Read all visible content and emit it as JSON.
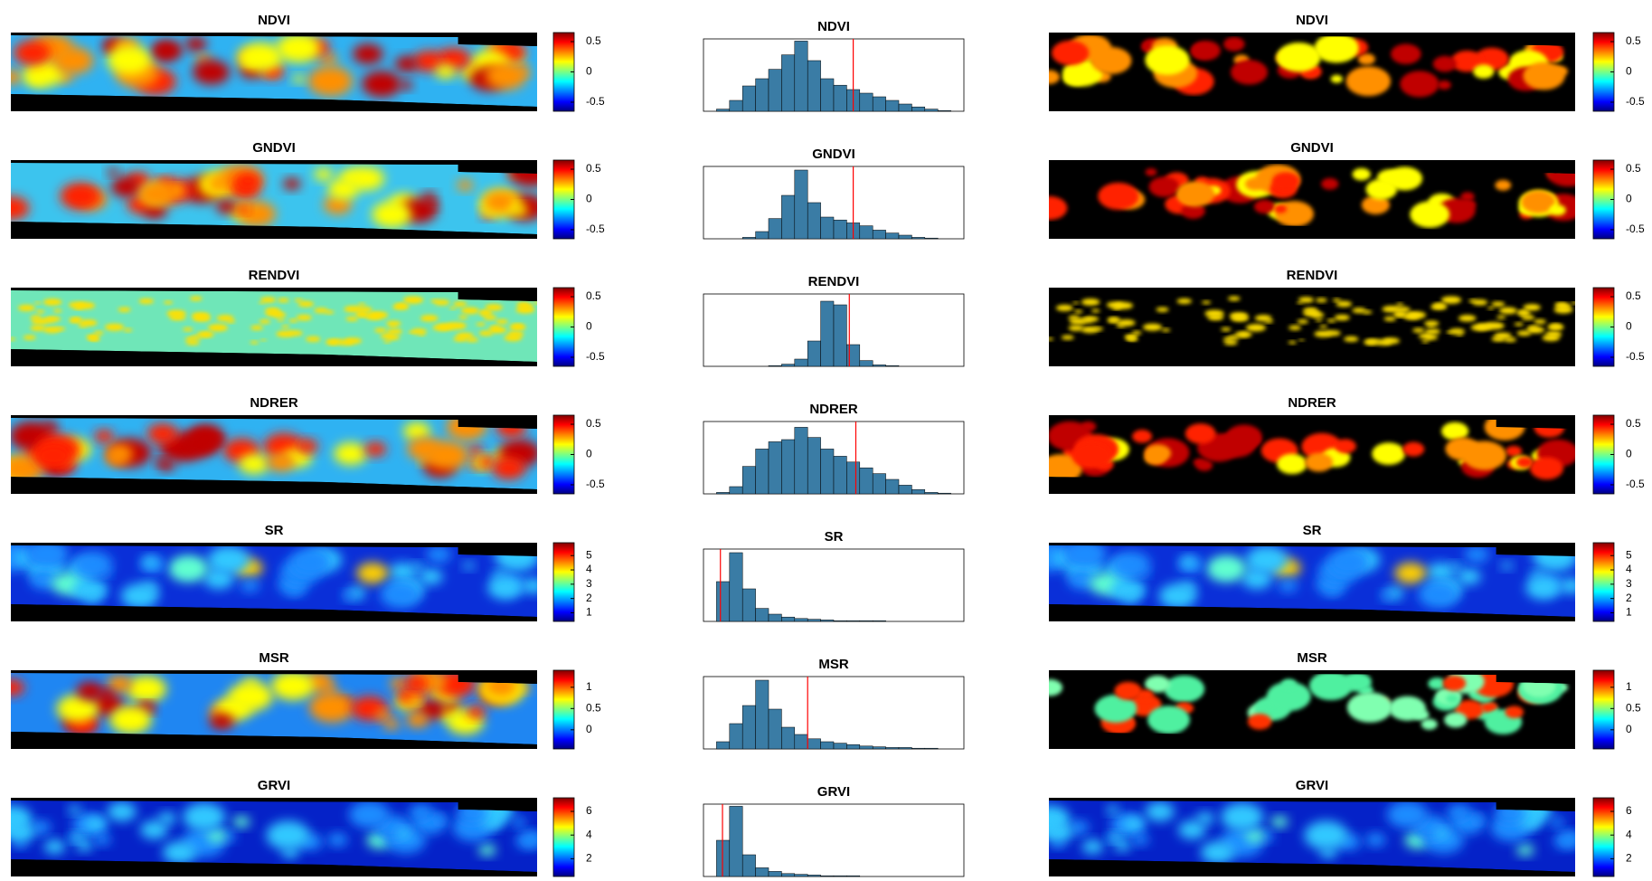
{
  "chart_data": [
    {
      "type": "heatmap",
      "title": "NDVI",
      "clim": [
        -0.65,
        0.65
      ],
      "cticks": [
        0.5,
        0,
        -0.5
      ],
      "mask": false
    },
    {
      "type": "histogram",
      "title": "NDVI",
      "xlim": [
        -1,
        1
      ],
      "ylim": [
        0,
        100
      ],
      "bins": [
        -0.9,
        -0.8,
        -0.7,
        -0.6,
        -0.5,
        -0.4,
        -0.3,
        -0.2,
        -0.1,
        0,
        0.1,
        0.2,
        0.3,
        0.4,
        0.5,
        0.6,
        0.7,
        0.8,
        0.9
      ],
      "counts": [
        3,
        15,
        35,
        45,
        58,
        78,
        97,
        70,
        45,
        36,
        30,
        25,
        20,
        15,
        10,
        6,
        3,
        1
      ],
      "threshold": 0.15,
      "color": "#3a7ca5",
      "line_color": "#ff0000"
    },
    {
      "type": "heatmap",
      "title": "NDVI",
      "clim": [
        -0.65,
        0.65
      ],
      "cticks": [
        0.5,
        0,
        -0.5
      ],
      "mask": true
    },
    {
      "type": "heatmap",
      "title": "GNDVI",
      "clim": [
        -0.65,
        0.65
      ],
      "cticks": [
        0.5,
        0,
        -0.5
      ],
      "mask": false
    },
    {
      "type": "histogram",
      "title": "GNDVI",
      "xlim": [
        -1,
        1
      ],
      "ylim": [
        0,
        100
      ],
      "bins": [
        -0.9,
        -0.8,
        -0.7,
        -0.6,
        -0.5,
        -0.4,
        -0.3,
        -0.2,
        -0.1,
        0,
        0.1,
        0.2,
        0.3,
        0.4,
        0.5,
        0.6,
        0.7,
        0.8,
        0.9
      ],
      "counts": [
        0,
        0,
        2,
        10,
        28,
        60,
        95,
        50,
        30,
        26,
        22,
        18,
        12,
        8,
        5,
        2,
        1,
        0
      ],
      "threshold": 0.15,
      "color": "#3a7ca5",
      "line_color": "#ff0000"
    },
    {
      "type": "heatmap",
      "title": "GNDVI",
      "clim": [
        -0.65,
        0.65
      ],
      "cticks": [
        0.5,
        0,
        -0.5
      ],
      "mask": true
    },
    {
      "type": "heatmap",
      "title": "RENDVI",
      "clim": [
        -0.65,
        0.65
      ],
      "cticks": [
        0.5,
        0,
        -0.5
      ],
      "mask": false
    },
    {
      "type": "histogram",
      "title": "RENDVI",
      "xlim": [
        -1,
        1
      ],
      "ylim": [
        0,
        100
      ],
      "bins": [
        -0.9,
        -0.8,
        -0.7,
        -0.6,
        -0.5,
        -0.4,
        -0.3,
        -0.2,
        -0.1,
        0,
        0.1,
        0.2,
        0.3,
        0.4,
        0.5,
        0.6,
        0.7,
        0.8,
        0.9
      ],
      "counts": [
        0,
        0,
        0,
        0,
        1,
        3,
        10,
        35,
        90,
        85,
        30,
        8,
        2,
        1,
        0,
        0,
        0,
        0
      ],
      "threshold": 0.12,
      "color": "#3a7ca5",
      "line_color": "#ff0000"
    },
    {
      "type": "heatmap",
      "title": "RENDVI",
      "clim": [
        -0.65,
        0.65
      ],
      "cticks": [
        0.5,
        0,
        -0.5
      ],
      "mask": true
    },
    {
      "type": "heatmap",
      "title": "NDRER",
      "clim": [
        -0.65,
        0.65
      ],
      "cticks": [
        0.5,
        0,
        -0.5
      ],
      "mask": false
    },
    {
      "type": "histogram",
      "title": "NDRER",
      "xlim": [
        -1,
        1
      ],
      "ylim": [
        0,
        100
      ],
      "bins": [
        -0.9,
        -0.8,
        -0.7,
        -0.6,
        -0.5,
        -0.4,
        -0.3,
        -0.2,
        -0.1,
        0,
        0.1,
        0.2,
        0.3,
        0.4,
        0.5,
        0.6,
        0.7,
        0.8,
        0.9
      ],
      "counts": [
        2,
        10,
        38,
        62,
        72,
        75,
        92,
        78,
        62,
        52,
        44,
        36,
        28,
        20,
        12,
        6,
        2,
        1
      ],
      "threshold": 0.17,
      "color": "#3a7ca5",
      "line_color": "#ff0000"
    },
    {
      "type": "heatmap",
      "title": "NDRER",
      "clim": [
        -0.65,
        0.65
      ],
      "cticks": [
        0.5,
        0,
        -0.5
      ],
      "mask": true
    },
    {
      "type": "heatmap",
      "title": "SR",
      "clim": [
        0.4,
        5.9
      ],
      "cticks": [
        5,
        4,
        3,
        2,
        1
      ],
      "mask": false
    },
    {
      "type": "histogram",
      "title": "SR",
      "xlim": [
        0,
        10
      ],
      "ylim": [
        0,
        100
      ],
      "bins": [
        0,
        0.5,
        1,
        1.5,
        2,
        2.5,
        3,
        3.5,
        4,
        4.5,
        5,
        5.5,
        6,
        6.5,
        7,
        7.5,
        8,
        8.5,
        9,
        9.5,
        10
      ],
      "counts": [
        0,
        55,
        95,
        45,
        18,
        10,
        6,
        4,
        3,
        2,
        1,
        1,
        1,
        1,
        0,
        0,
        0,
        0,
        0,
        0
      ],
      "threshold": 0.65,
      "color": "#3a7ca5",
      "line_color": "#ff0000"
    },
    {
      "type": "heatmap",
      "title": "SR",
      "clim": [
        0.4,
        5.9
      ],
      "cticks": [
        5,
        4,
        3,
        2,
        1
      ],
      "mask": false
    },
    {
      "type": "heatmap",
      "title": "MSR",
      "clim": [
        -0.45,
        1.4
      ],
      "cticks": [
        1,
        0.5,
        0
      ],
      "mask": false
    },
    {
      "type": "histogram",
      "title": "MSR",
      "xlim": [
        -0.5,
        2
      ],
      "ylim": [
        0,
        100
      ],
      "bins": [
        -0.5,
        -0.375,
        -0.25,
        -0.125,
        0,
        0.125,
        0.25,
        0.375,
        0.5,
        0.625,
        0.75,
        0.875,
        1,
        1.125,
        1.25,
        1.375,
        1.5,
        1.625,
        1.75,
        1.875,
        2
      ],
      "counts": [
        0,
        10,
        35,
        60,
        95,
        55,
        30,
        20,
        14,
        10,
        8,
        6,
        4,
        3,
        2,
        2,
        1,
        1,
        0,
        0
      ],
      "threshold": 0.5,
      "color": "#3a7ca5",
      "line_color": "#ff0000"
    },
    {
      "type": "heatmap",
      "title": "MSR",
      "clim": [
        -0.45,
        1.4
      ],
      "cticks": [
        1,
        0.5,
        0
      ],
      "mask": true
    },
    {
      "type": "heatmap",
      "title": "GRVI",
      "clim": [
        0.5,
        7.15
      ],
      "cticks": [
        6,
        4,
        2
      ],
      "mask": false
    },
    {
      "type": "histogram",
      "title": "GRVI",
      "xlim": [
        0,
        10
      ],
      "ylim": [
        0,
        100
      ],
      "bins": [
        0,
        0.5,
        1,
        1.5,
        2,
        2.5,
        3,
        3.5,
        4,
        4.5,
        5,
        5.5,
        6,
        6.5,
        7,
        7.5,
        8,
        8.5,
        9,
        9.5,
        10
      ],
      "counts": [
        0,
        50,
        97,
        30,
        12,
        7,
        4,
        3,
        2,
        1,
        1,
        1,
        0,
        0,
        0,
        0,
        0,
        0,
        0,
        0
      ],
      "threshold": 0.73,
      "color": "#3a7ca5",
      "line_color": "#ff0000"
    },
    {
      "type": "heatmap",
      "title": "GRVI",
      "clim": [
        0.5,
        7.15
      ],
      "cticks": [
        6,
        4,
        2
      ],
      "mask": false
    }
  ]
}
